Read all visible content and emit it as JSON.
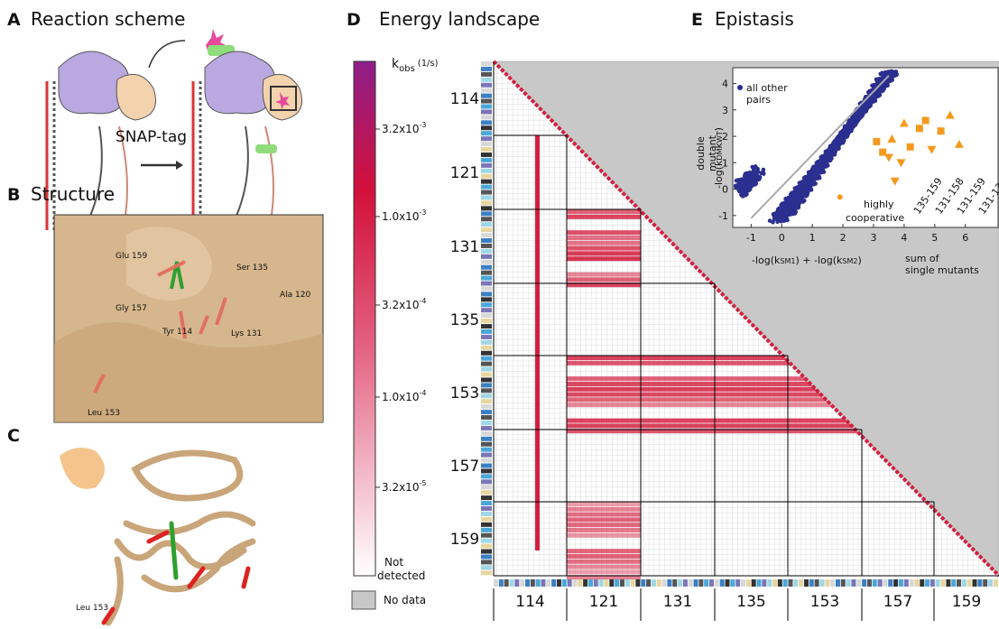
{
  "panels": {
    "A": {
      "letter": "A",
      "title": "Reaction scheme",
      "label": "SNAP-tag"
    },
    "B": {
      "letter": "B",
      "title": "Structure",
      "residues": [
        "Glu 159",
        "Ser 135",
        "Ala 120",
        "Gly 157",
        "Tyr 114",
        "Lys 131",
        "Leu 153"
      ]
    },
    "C": {
      "letter": "C",
      "residue": "Leu 153"
    },
    "D": {
      "letter": "D",
      "title": "Energy landscape",
      "colorbar": {
        "k": "k",
        "sub": "obs",
        "unit": "(1/s)",
        "ticks": [
          {
            "base": "3.2x10",
            "exp": "-3"
          },
          {
            "base": "1.0x10",
            "exp": "-3"
          },
          {
            "base": "3.2x10",
            "exp": "-4"
          },
          {
            "base": "1.0x10",
            "exp": "-4"
          },
          {
            "base": "3.2x10",
            "exp": "-5"
          }
        ],
        "bottom": [
          "Not",
          "detected"
        ],
        "nodata": "No data"
      },
      "blocks": [
        "114",
        "121",
        "131",
        "135",
        "153",
        "157",
        "159"
      ]
    },
    "E": {
      "letter": "E",
      "title": "Epistasis",
      "legend": [
        "all other",
        "pairs"
      ],
      "ylabel": [
        "double",
        "mutant"
      ],
      "ylabel_formula": {
        "pre": "-log(",
        "num": "k",
        "num_sub": "DM",
        "den": "k",
        "den_sub": "WT",
        "post": ")"
      },
      "xlabel": {
        "a": "-log(",
        "k1": "k",
        "s1": "SM1",
        "k2": "k",
        "s2": "SM2",
        "w": "k",
        "ws": "WT",
        "mid": ") + -log(",
        "post": ")"
      },
      "xlabel_right": [
        "sum of",
        "single mutants"
      ],
      "note": [
        "highly",
        "cooperative"
      ],
      "pairs": [
        "135-159",
        "131-158",
        "131-159",
        "131-13"
      ],
      "xticks": [
        -1,
        0,
        1,
        2,
        3,
        4,
        5,
        6
      ],
      "yticks": [
        -1,
        0,
        1,
        2,
        3,
        4
      ],
      "xlim": [
        -1.6,
        7.1
      ],
      "ylim": [
        -1.45,
        4.6
      ]
    }
  }
}
